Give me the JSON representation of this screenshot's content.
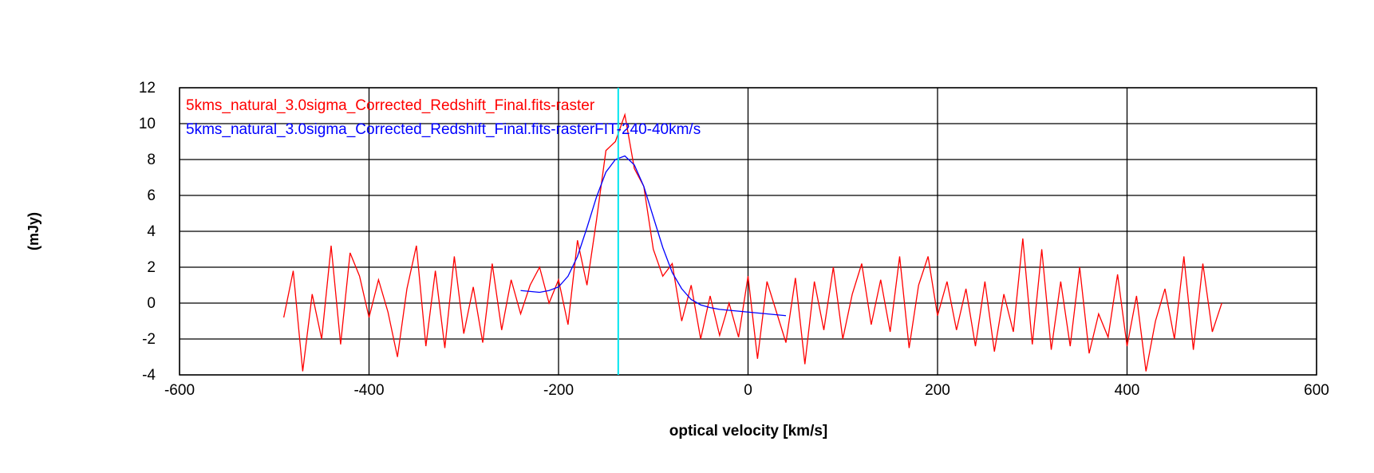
{
  "chart_data": {
    "type": "line",
    "xlabel": "optical velocity [km/s]",
    "ylabel": "(mJy)",
    "xlim": [
      -600,
      600
    ],
    "xticks": [
      -600,
      -400,
      -200,
      0,
      200,
      400,
      600
    ],
    "ylim": [
      -4,
      12
    ],
    "yticks": [
      -4,
      -2,
      0,
      2,
      4,
      6,
      8,
      10,
      12
    ],
    "grid": true,
    "vline": {
      "x": -137,
      "color": "#00e5ee"
    },
    "series": [
      {
        "name": "5kms_natural_3.0sigma_Corrected_Redshift_Final.fits-raster",
        "color": "#ff0000",
        "x": [
          -490,
          -480,
          -470,
          -460,
          -450,
          -440,
          -430,
          -420,
          -410,
          -400,
          -390,
          -380,
          -370,
          -360,
          -350,
          -340,
          -330,
          -320,
          -310,
          -300,
          -290,
          -280,
          -270,
          -260,
          -250,
          -240,
          -230,
          -220,
          -210,
          -200,
          -190,
          -180,
          -170,
          -160,
          -150,
          -140,
          -130,
          -120,
          -110,
          -100,
          -90,
          -80,
          -70,
          -60,
          -50,
          -40,
          -30,
          -20,
          -10,
          0,
          10,
          20,
          30,
          40,
          50,
          60,
          70,
          80,
          90,
          100,
          110,
          120,
          130,
          140,
          150,
          160,
          170,
          180,
          190,
          200,
          210,
          220,
          230,
          240,
          250,
          260,
          270,
          280,
          290,
          300,
          310,
          320,
          330,
          340,
          350,
          360,
          370,
          380,
          390,
          400,
          410,
          420,
          430,
          440,
          450,
          460,
          470,
          480,
          490,
          500
        ],
        "values": [
          -0.8,
          1.8,
          -3.8,
          0.5,
          -2.0,
          3.2,
          -2.3,
          2.8,
          1.5,
          -0.8,
          1.3,
          -0.5,
          -3.0,
          0.8,
          3.2,
          -2.4,
          1.8,
          -2.5,
          2.6,
          -1.7,
          0.9,
          -2.2,
          2.2,
          -1.5,
          1.3,
          -0.6,
          1.0,
          2.0,
          0.0,
          1.3,
          -1.2,
          3.5,
          1.0,
          4.6,
          8.5,
          9.0,
          10.5,
          7.5,
          6.5,
          3.0,
          1.5,
          2.2,
          -1.0,
          1.0,
          -2.0,
          0.4,
          -1.8,
          0.0,
          -1.9,
          1.5,
          -3.1,
          1.2,
          -0.5,
          -2.2,
          1.4,
          -3.4,
          1.2,
          -1.5,
          2.0,
          -2.0,
          0.5,
          2.2,
          -1.2,
          1.3,
          -1.6,
          2.6,
          -2.5,
          1.0,
          2.6,
          -0.7,
          1.2,
          -1.5,
          0.8,
          -2.4,
          1.2,
          -2.7,
          0.5,
          -1.6,
          3.6,
          -2.3,
          3.0,
          -2.6,
          1.2,
          -2.4,
          2.0,
          -2.8,
          -0.6,
          -1.9,
          1.6,
          -2.4,
          0.4,
          -3.8,
          -1.0,
          0.8,
          -2.0,
          2.6,
          -2.6,
          2.2,
          -1.6,
          0.0
        ]
      },
      {
        "name": "5kms_natural_3.0sigma_Corrected_Redshift_Final.fits-rasterFIT-240-40km/s",
        "color": "#0000ff",
        "x": [
          -240,
          -230,
          -220,
          -210,
          -200,
          -190,
          -180,
          -170,
          -160,
          -150,
          -140,
          -130,
          -120,
          -110,
          -100,
          -90,
          -80,
          -70,
          -60,
          -50,
          -40,
          -30,
          -20,
          -10,
          0,
          10,
          20,
          30,
          40
        ],
        "values": [
          0.7,
          0.65,
          0.6,
          0.7,
          0.9,
          1.5,
          2.6,
          4.2,
          5.9,
          7.3,
          8.0,
          8.2,
          7.7,
          6.5,
          4.8,
          3.1,
          1.7,
          0.8,
          0.2,
          -0.1,
          -0.25,
          -0.35,
          -0.4,
          -0.45,
          -0.5,
          -0.55,
          -0.6,
          -0.65,
          -0.7
        ]
      }
    ]
  }
}
